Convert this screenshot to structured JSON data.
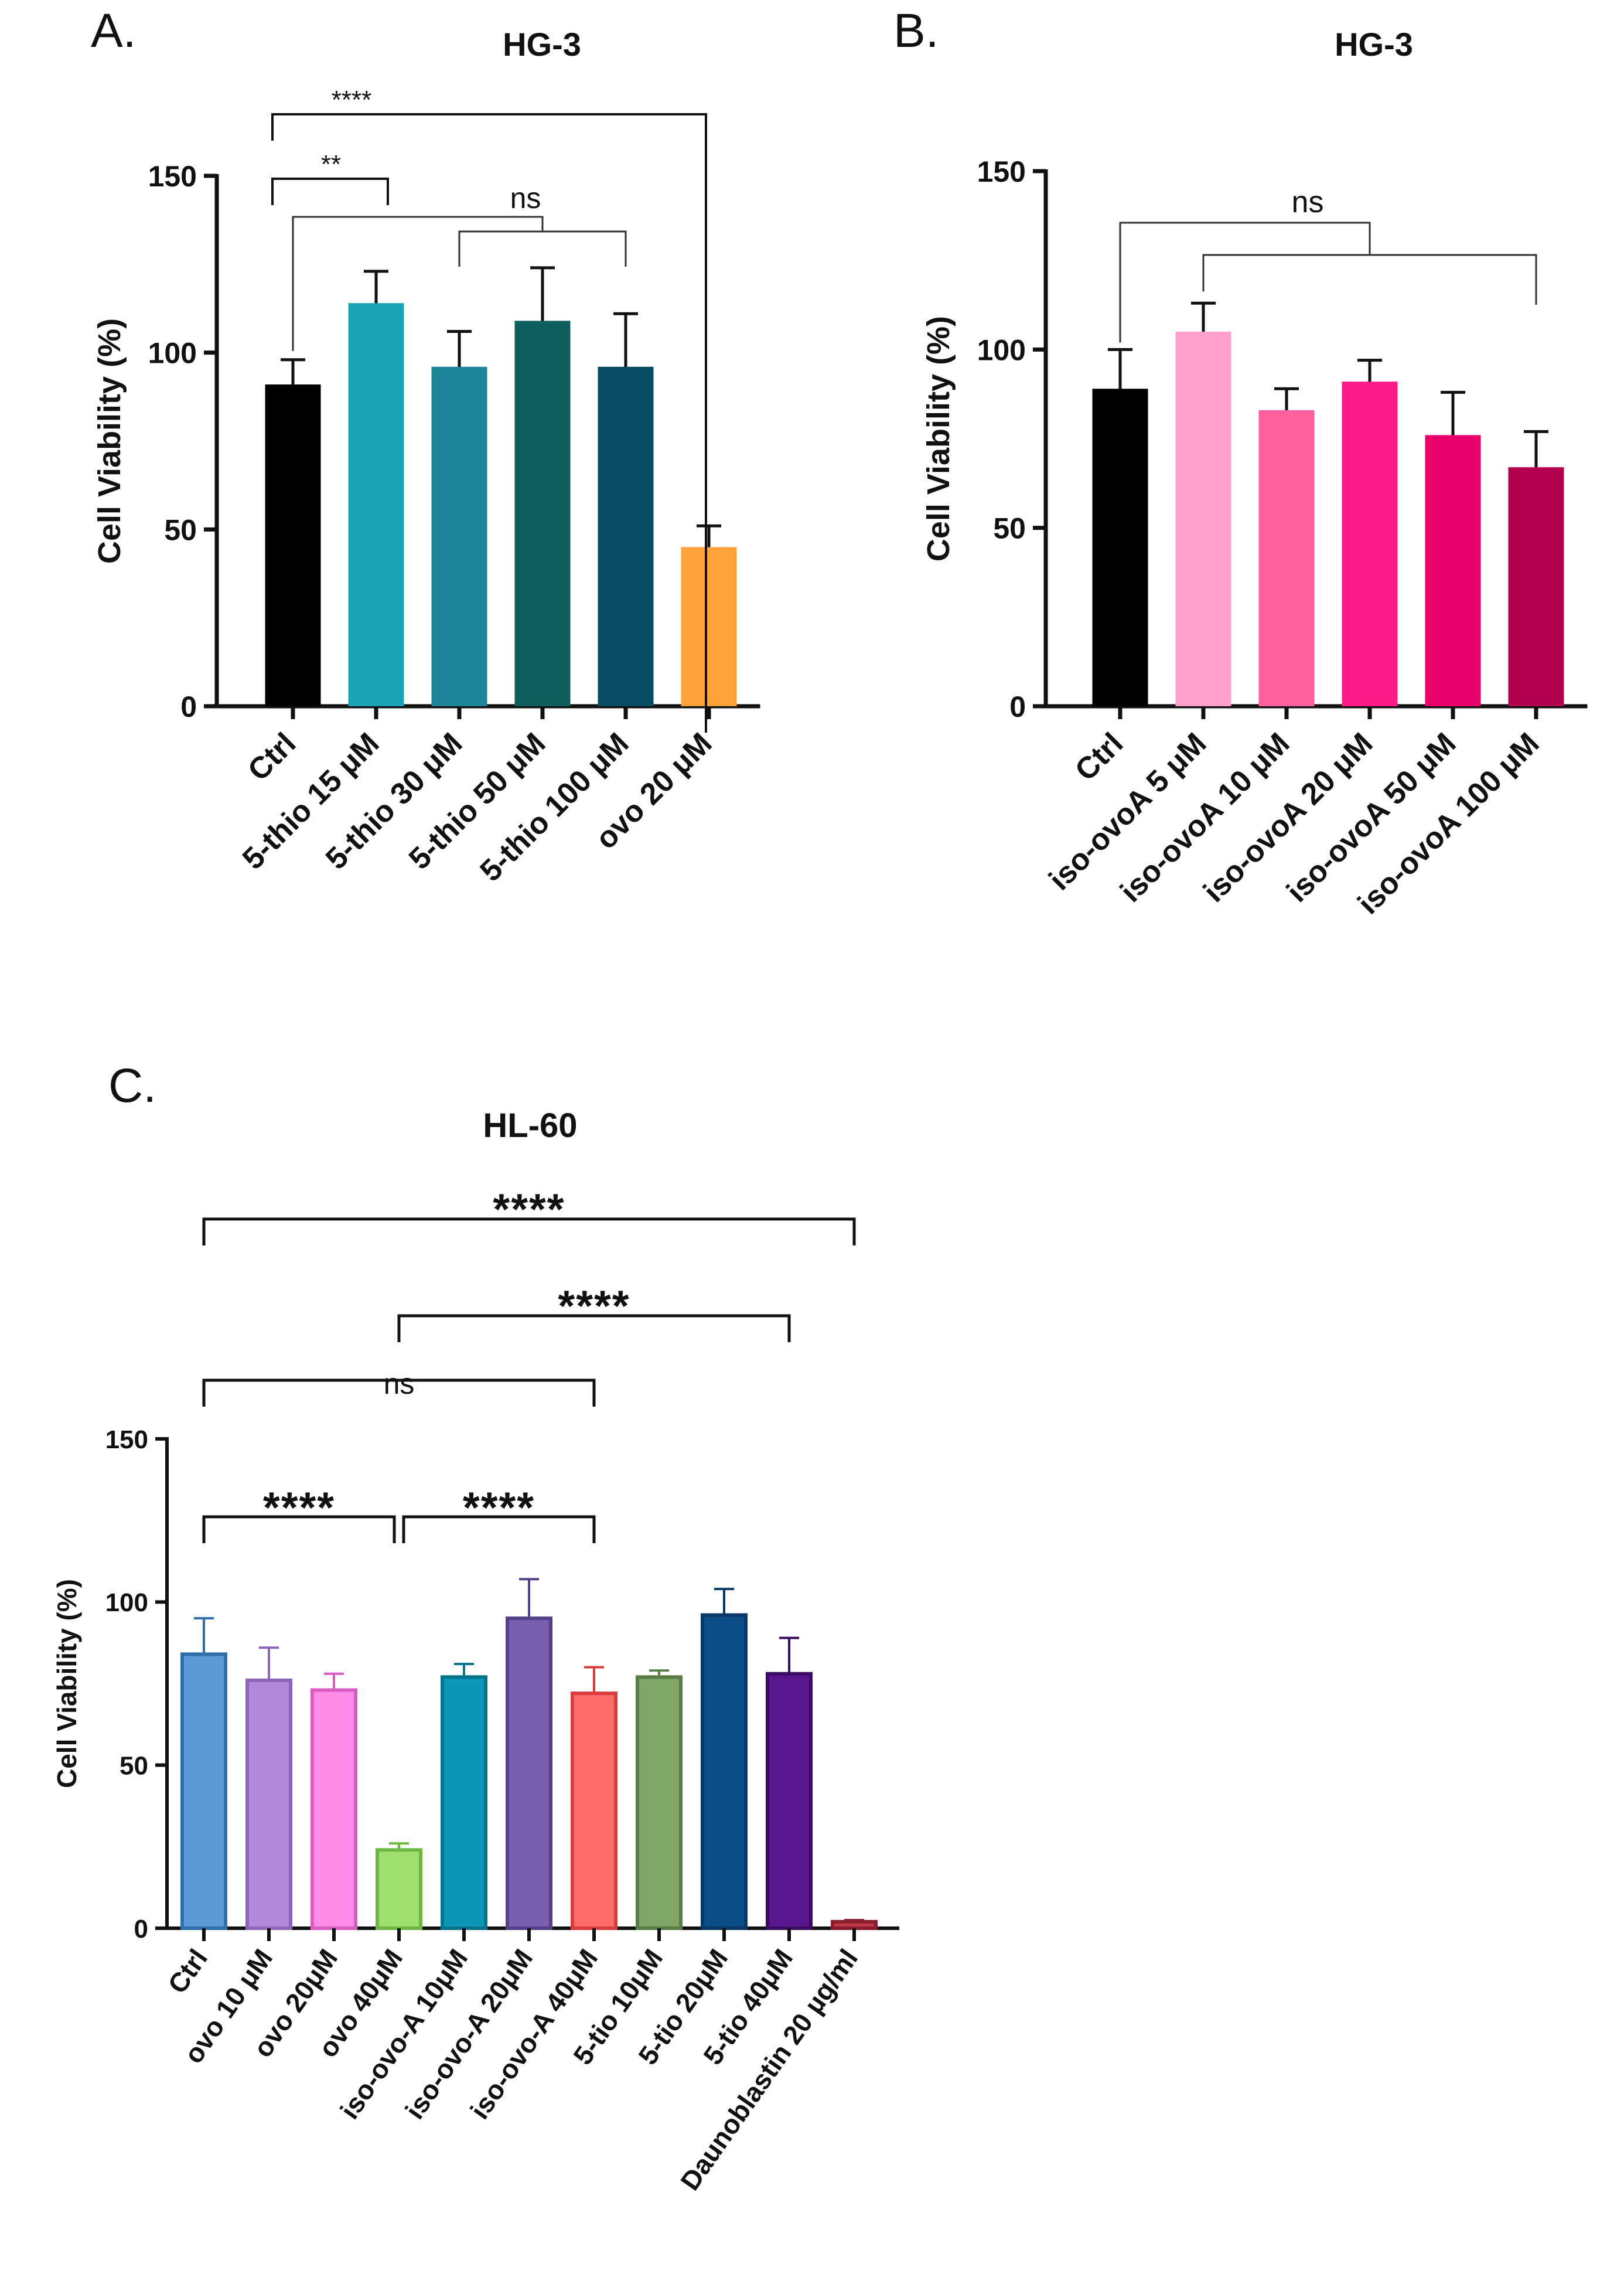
{
  "chart_data": [
    {
      "type": "bar",
      "panel": "A.",
      "title": "HG-3",
      "ylabel": "Cell Viability (%)",
      "xlabel": "",
      "ylim": [
        0,
        150
      ],
      "yticks": [
        "0",
        "50",
        "100",
        "150"
      ],
      "categories": [
        "Ctrl",
        "5-thio 15 μM",
        "5-thio 30 μM",
        "5-thio 50 μM",
        "5-thio 100 μM",
        "ovo 20 μM"
      ],
      "values": [
        91,
        114,
        96,
        109,
        96,
        45
      ],
      "errors": [
        7,
        9,
        10,
        15,
        15,
        6
      ],
      "colors": [
        "#000000",
        "#1ba3b6",
        "#1c8698",
        "#0e5f5e",
        "#064d63",
        "#ffa238"
      ],
      "annotations": [
        {
          "label": "****",
          "from": 0,
          "to": 5
        },
        {
          "label": "**",
          "from": 0,
          "to": 1
        },
        {
          "label": "ns",
          "from": 0,
          "to": "2-4"
        }
      ]
    },
    {
      "type": "bar",
      "panel": "B.",
      "title": "HG-3",
      "ylabel": "Cell Viability (%)",
      "xlabel": "",
      "ylim": [
        0,
        150
      ],
      "yticks": [
        "0",
        "50",
        "100",
        "150"
      ],
      "categories": [
        "Ctrl",
        "iso-ovoA 5 μM",
        "iso-ovoA 10 μM",
        "iso-ovoA 20 μM",
        "iso-ovoA 50 μM",
        "iso-ovoA 100 μM"
      ],
      "values": [
        89,
        105,
        83,
        91,
        76,
        67
      ],
      "errors": [
        11,
        8,
        6,
        6,
        12,
        10
      ],
      "colors": [
        "#000000",
        "#ff9fcb",
        "#ff5f9f",
        "#ff1a8c",
        "#ea006a",
        "#b3004f"
      ],
      "annotations": [
        {
          "label": "ns",
          "from": 0,
          "to": "1-5"
        }
      ]
    },
    {
      "type": "bar",
      "panel": "C.",
      "title": "HL-60",
      "ylabel": "Cell Viability (%)",
      "xlabel": "",
      "ylim": [
        0,
        150
      ],
      "yticks": [
        "0",
        "50",
        "100",
        "150"
      ],
      "categories": [
        "Ctrl",
        "ovo 10 μM",
        "ovo 20μM",
        "ovo 40μM",
        "iso-ovo-A 10μM",
        "iso-ovo-A 20μM",
        "iso-ovo-A 40μM",
        "5-tio 10μM",
        "5-tio 20μM",
        "5-tio 40μM",
        "Daunoblastin 20 µg/ml"
      ],
      "values": [
        84,
        76,
        73,
        24,
        77,
        95,
        72,
        77,
        96,
        78,
        2
      ],
      "errors": [
        11,
        10,
        5,
        2,
        4,
        12,
        8,
        2,
        8,
        11,
        0.5
      ],
      "colors": [
        "#5b9bd5",
        "#b08ad8",
        "#ff8ce6",
        "#9fe070",
        "#0b97b8",
        "#7a5fb0",
        "#ff6b6b",
        "#7fa567",
        "#0b4f8a",
        "#5a168e",
        "#c0374a"
      ],
      "edgecolors": [
        "#2f6fad",
        "#8c65b8",
        "#d95cc2",
        "#6cb841",
        "#06728c",
        "#55408a",
        "#d93c3c",
        "#5b7d45",
        "#073866",
        "#3c0b63",
        "#8a1d2d"
      ],
      "annotations": [
        {
          "label": "****",
          "from": 0,
          "to": 10
        },
        {
          "label": "****",
          "from": 3,
          "to": 9
        },
        {
          "label": "ns",
          "from": 0,
          "to": 6
        },
        {
          "label": "****",
          "from": 0,
          "to": 3
        },
        {
          "label": "****",
          "from": 3,
          "to": 6
        }
      ]
    }
  ]
}
